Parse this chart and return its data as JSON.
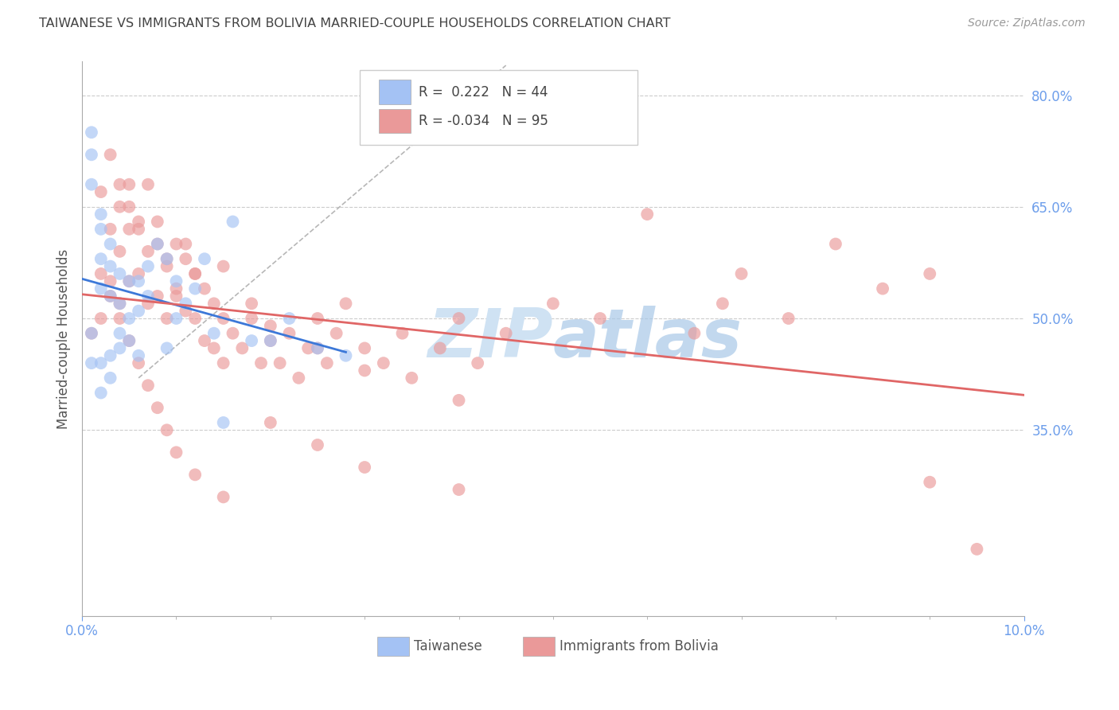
{
  "title": "TAIWANESE VS IMMIGRANTS FROM BOLIVIA MARRIED-COUPLE HOUSEHOLDS CORRELATION CHART",
  "source": "Source: ZipAtlas.com",
  "ylabel": "Married-couple Households",
  "ytick_labels": [
    "80.0%",
    "65.0%",
    "50.0%",
    "35.0%"
  ],
  "ytick_values": [
    0.8,
    0.65,
    0.5,
    0.35
  ],
  "xmin": 0.0,
  "xmax": 0.1,
  "ymin": 0.1,
  "ymax": 0.845,
  "r_taiwanese": 0.222,
  "n_taiwanese": 44,
  "r_bolivia": -0.034,
  "n_bolivia": 95,
  "color_taiwanese": "#a4c2f4",
  "color_bolivia": "#ea9999",
  "color_taiwanese_line": "#3c78d8",
  "color_bolivia_line": "#e06666",
  "color_diag": "#b7b7b7",
  "background_color": "#ffffff",
  "grid_color": "#cccccc",
  "title_color": "#434343",
  "axis_label_color": "#6d9eeb",
  "right_tick_color": "#6d9eeb",
  "watermark_color": "#cfe2f3",
  "legend_label1": "Taiwanese",
  "legend_label2": "Immigrants from Bolivia",
  "tw_x": [
    0.001,
    0.001,
    0.001,
    0.002,
    0.002,
    0.002,
    0.002,
    0.003,
    0.003,
    0.003,
    0.004,
    0.004,
    0.004,
    0.005,
    0.005,
    0.006,
    0.006,
    0.007,
    0.007,
    0.008,
    0.009,
    0.009,
    0.01,
    0.01,
    0.011,
    0.012,
    0.013,
    0.014,
    0.015,
    0.016,
    0.018,
    0.02,
    0.022,
    0.025,
    0.028,
    0.001,
    0.001,
    0.002,
    0.003,
    0.004,
    0.005,
    0.006,
    0.002,
    0.003
  ],
  "tw_y": [
    0.75,
    0.72,
    0.68,
    0.64,
    0.62,
    0.58,
    0.54,
    0.6,
    0.57,
    0.53,
    0.56,
    0.52,
    0.48,
    0.55,
    0.5,
    0.55,
    0.51,
    0.57,
    0.53,
    0.6,
    0.58,
    0.46,
    0.55,
    0.5,
    0.52,
    0.54,
    0.58,
    0.48,
    0.36,
    0.63,
    0.47,
    0.47,
    0.5,
    0.46,
    0.45,
    0.48,
    0.44,
    0.44,
    0.45,
    0.46,
    0.47,
    0.45,
    0.4,
    0.42
  ],
  "bo_x": [
    0.001,
    0.002,
    0.002,
    0.003,
    0.003,
    0.004,
    0.004,
    0.004,
    0.005,
    0.005,
    0.005,
    0.006,
    0.006,
    0.007,
    0.007,
    0.008,
    0.008,
    0.009,
    0.009,
    0.01,
    0.01,
    0.011,
    0.011,
    0.012,
    0.012,
    0.013,
    0.013,
    0.014,
    0.014,
    0.015,
    0.015,
    0.016,
    0.017,
    0.018,
    0.019,
    0.02,
    0.021,
    0.022,
    0.023,
    0.024,
    0.025,
    0.026,
    0.027,
    0.028,
    0.03,
    0.032,
    0.034,
    0.035,
    0.038,
    0.04,
    0.042,
    0.045,
    0.05,
    0.055,
    0.06,
    0.065,
    0.068,
    0.07,
    0.075,
    0.08,
    0.085,
    0.09,
    0.095,
    0.002,
    0.003,
    0.004,
    0.005,
    0.006,
    0.007,
    0.008,
    0.009,
    0.01,
    0.011,
    0.012,
    0.015,
    0.018,
    0.02,
    0.025,
    0.03,
    0.04,
    0.003,
    0.004,
    0.005,
    0.006,
    0.007,
    0.008,
    0.009,
    0.01,
    0.012,
    0.015,
    0.02,
    0.025,
    0.03,
    0.04,
    0.09
  ],
  "bo_y": [
    0.48,
    0.56,
    0.5,
    0.62,
    0.55,
    0.65,
    0.59,
    0.52,
    0.68,
    0.62,
    0.55,
    0.63,
    0.56,
    0.59,
    0.52,
    0.6,
    0.53,
    0.57,
    0.5,
    0.6,
    0.53,
    0.58,
    0.51,
    0.56,
    0.5,
    0.54,
    0.47,
    0.52,
    0.46,
    0.5,
    0.44,
    0.48,
    0.46,
    0.5,
    0.44,
    0.47,
    0.44,
    0.48,
    0.42,
    0.46,
    0.5,
    0.44,
    0.48,
    0.52,
    0.46,
    0.44,
    0.48,
    0.42,
    0.46,
    0.5,
    0.44,
    0.48,
    0.52,
    0.5,
    0.64,
    0.48,
    0.52,
    0.56,
    0.5,
    0.6,
    0.54,
    0.56,
    0.19,
    0.67,
    0.72,
    0.68,
    0.65,
    0.62,
    0.68,
    0.63,
    0.58,
    0.54,
    0.6,
    0.56,
    0.57,
    0.52,
    0.49,
    0.46,
    0.43,
    0.39,
    0.53,
    0.5,
    0.47,
    0.44,
    0.41,
    0.38,
    0.35,
    0.32,
    0.29,
    0.26,
    0.36,
    0.33,
    0.3,
    0.27,
    0.28
  ]
}
